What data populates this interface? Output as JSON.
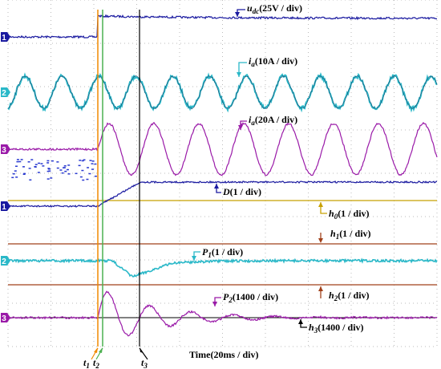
{
  "channels": [
    "1",
    "2",
    "3",
    "1",
    "2",
    "3"
  ],
  "labels": [
    {
      "main": "u",
      "sub": "dc",
      "rest": "(25V / div)"
    },
    {
      "main": "i",
      "sub": "a",
      "rest": "(10A / div)"
    },
    {
      "main": "i",
      "sub": "a",
      "rest": "(20A / div)"
    },
    {
      "main": "D",
      "sub": "",
      "rest": "(1 / div)"
    },
    {
      "main": "h",
      "sub": "0",
      "rest": "(1 / div)"
    },
    {
      "main": "h",
      "sub": "1",
      "rest": "(1 / div)"
    },
    {
      "main": "P",
      "sub": "1",
      "rest": "(1 / div)"
    },
    {
      "main": "h",
      "sub": "2",
      "rest": "(1 / div)"
    },
    {
      "main": "P",
      "sub": "2",
      "rest": "(1400 / div)"
    },
    {
      "main": "h",
      "sub": "3",
      "rest": "(1400 / div)"
    }
  ],
  "time_label": "Time(20ms / div)",
  "markers": [
    {
      "main": "t",
      "sub": "1"
    },
    {
      "main": "t",
      "sub": "2"
    },
    {
      "main": "t",
      "sub": "3"
    }
  ]
}
